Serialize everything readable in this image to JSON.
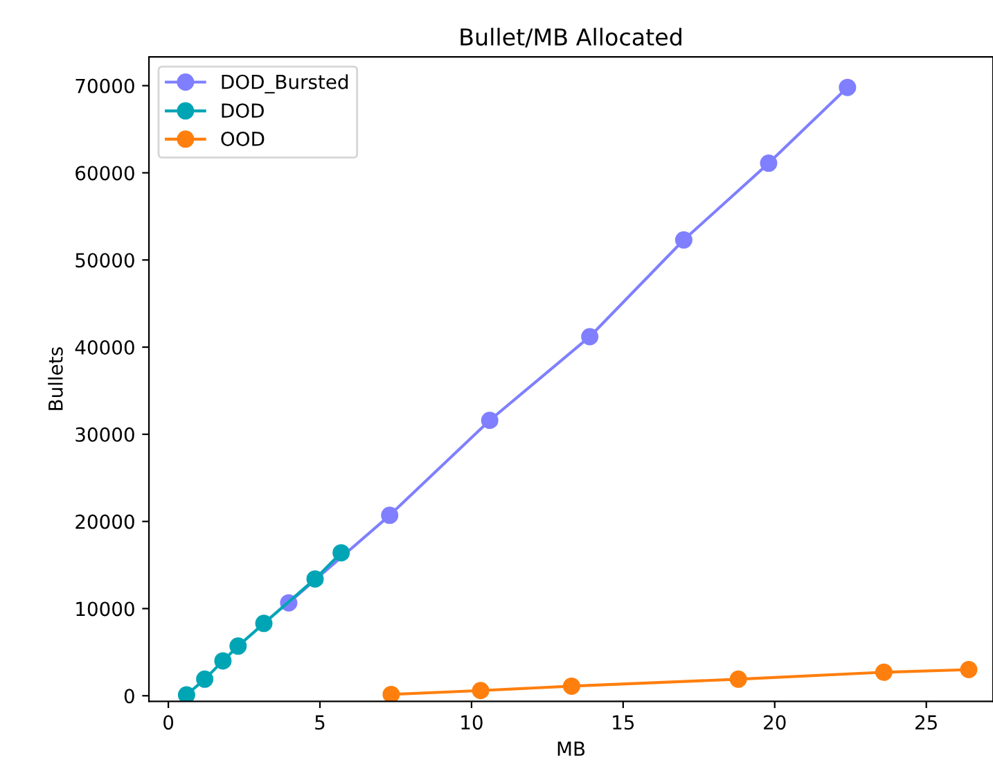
{
  "chart_data": {
    "type": "line",
    "title": "Bullet/MB Allocated",
    "xlabel": "MB",
    "ylabel": "Bullets",
    "series": [
      {
        "name": "DOD_Bursted",
        "color": "#7f7fff",
        "x": [
          3.97,
          7.3,
          10.6,
          13.9,
          17.0,
          19.8,
          22.4
        ],
        "values": [
          10660,
          20700,
          31600,
          41200,
          52300,
          61100,
          69800
        ]
      },
      {
        "name": "DOD",
        "color": "#00a5b5",
        "x": [
          0.6,
          1.2,
          1.8,
          2.3,
          3.15,
          4.84,
          5.7
        ],
        "values": [
          100,
          1900,
          4000,
          5700,
          8300,
          13400,
          16400
        ]
      },
      {
        "name": "OOD",
        "color": "#ff7f0e",
        "x": [
          7.35,
          10.3,
          13.3,
          18.8,
          23.6,
          26.4
        ],
        "values": [
          150,
          600,
          1100,
          1900,
          2700,
          3000
        ]
      }
    ],
    "xlim": [
      -0.64,
      27.2
    ],
    "ylim": [
      -640,
      73300
    ],
    "xticks": [
      0,
      5,
      10,
      15,
      20,
      25
    ],
    "yticks": [
      0,
      10000,
      20000,
      30000,
      40000,
      50000,
      60000,
      70000
    ],
    "marker": "circle",
    "line_style": "solid",
    "legend": "top left",
    "grid": false
  }
}
